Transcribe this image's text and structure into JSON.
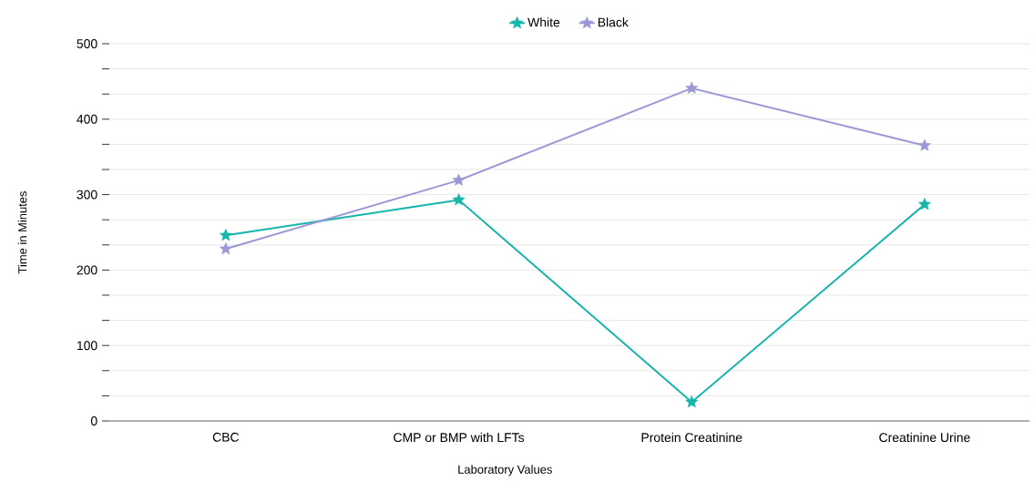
{
  "chart_data": {
    "type": "line",
    "xlabel": "Laboratory Values",
    "ylabel": "Time in Minutes",
    "categories": [
      "CBC",
      "CMP or BMP with LFTs",
      "Protein Creatinine",
      "Creatinine Urine"
    ],
    "series": [
      {
        "name": "White",
        "color": "#17b5aa",
        "values": [
          246,
          293,
          25,
          287
        ]
      },
      {
        "name": "Black",
        "color": "#9b98d8",
        "values": [
          228,
          319,
          441,
          365
        ]
      }
    ],
    "ylim": [
      0,
      500
    ],
    "yticks": [
      0,
      {
        "value": 33.3,
        "label": null
      },
      {
        "value": 66.7,
        "label": null
      },
      100,
      {
        "value": 133.3,
        "label": null
      },
      {
        "value": 166.7,
        "label": null
      },
      200,
      {
        "value": 233.3,
        "label": null
      },
      {
        "value": 266.7,
        "label": null
      },
      300,
      {
        "value": 333.3,
        "label": null
      },
      {
        "value": 366.7,
        "label": null
      },
      400,
      {
        "value": 433.3,
        "label": null
      },
      {
        "value": 466.7,
        "label": null
      },
      500
    ],
    "grid": "y",
    "legend": "top",
    "marker": "star",
    "line_style": "solid"
  }
}
